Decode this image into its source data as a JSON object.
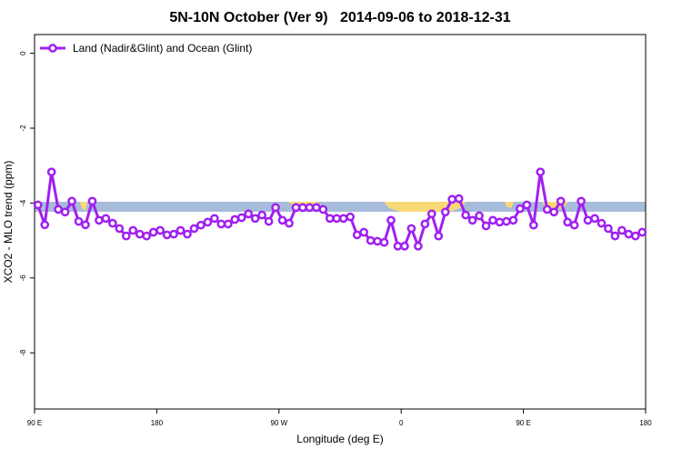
{
  "chart_data": {
    "type": "line",
    "title": "5N-10N October (Ver 9)   2014-09-06 to 2018-12-31",
    "x_label": "Longitude (deg E)",
    "y_label": "XCO2 - MLO trend (ppm)",
    "xlim": [
      90,
      540
    ],
    "ylim": [
      -9.5,
      0.5
    ],
    "xticks": [
      {
        "value": 90,
        "label": "90 E"
      },
      180,
      {
        "value": 270,
        "label": "90 W"
      },
      {
        "value": 360,
        "label": "0"
      },
      {
        "value": 450,
        "label": "90 E"
      },
      {
        "value": 540,
        "label": "180"
      }
    ],
    "yticks": [
      0,
      -2,
      -4,
      -6,
      -8
    ],
    "legend": "top-left",
    "x": [
      92.5,
      97.5,
      102.5,
      107.5,
      112.5,
      117.5,
      122.5,
      127.5,
      132.5,
      137.5,
      142.5,
      147.5,
      152.5,
      157.5,
      162.5,
      167.5,
      172.5,
      177.5,
      182.5,
      187.5,
      192.5,
      197.5,
      202.5,
      207.5,
      212.5,
      217.5,
      222.5,
      227.5,
      232.5,
      237.5,
      242.5,
      247.5,
      252.5,
      257.5,
      262.5,
      267.5,
      272.5,
      277.5,
      282.5,
      287.5,
      292.5,
      297.5,
      302.5,
      307.5,
      312.5,
      317.5,
      322.5,
      327.5,
      332.5,
      337.5,
      342.5,
      347.5,
      352.5,
      357.5,
      362.5,
      367.5,
      372.5,
      377.5,
      382.5,
      387.5,
      392.5,
      397.5,
      402.5,
      407.5,
      412.5,
      417.5,
      422.5,
      427.5,
      432.5,
      437.5,
      442.5,
      447.5,
      452.5,
      457.5,
      462.5,
      467.5,
      472.5,
      477.5,
      482.5,
      487.5,
      492.5,
      497.5,
      502.5,
      507.5,
      512.5,
      517.5,
      522.5,
      527.5,
      532.5,
      537.5
    ],
    "series": [
      {
        "name": "Land (Nadir&Glint) and Ocean (Glint)",
        "color": "#a020f0",
        "values": [
          -4.05,
          -4.58,
          -3.17,
          -4.17,
          -4.24,
          -3.95,
          -4.49,
          -4.58,
          -3.95,
          -4.46,
          -4.41,
          -4.54,
          -4.68,
          -4.88,
          -4.73,
          -4.83,
          -4.88,
          -4.78,
          -4.73,
          -4.85,
          -4.83,
          -4.73,
          -4.83,
          -4.68,
          -4.59,
          -4.51,
          -4.41,
          -4.56,
          -4.56,
          -4.44,
          -4.39,
          -4.29,
          -4.41,
          -4.32,
          -4.49,
          -4.12,
          -4.46,
          -4.54,
          -4.12,
          -4.12,
          -4.12,
          -4.12,
          -4.17,
          -4.41,
          -4.41,
          -4.41,
          -4.37,
          -4.85,
          -4.78,
          -5.0,
          -5.02,
          -5.05,
          -4.46,
          -5.15,
          -5.15,
          -4.68,
          -5.15,
          -4.56,
          -4.29,
          -4.88,
          -4.24,
          -3.9,
          -3.88,
          -4.32,
          -4.46,
          -4.34,
          -4.61,
          -4.46,
          -4.51,
          -4.49,
          -4.46,
          -4.15,
          -4.05,
          -4.59,
          -3.17,
          -4.17,
          -4.24,
          -3.95,
          -4.51,
          -4.59,
          -3.95,
          -4.46,
          -4.41,
          -4.54,
          -4.68,
          -4.88,
          -4.73,
          -4.83,
          -4.88,
          -4.78
        ]
      }
    ]
  }
}
